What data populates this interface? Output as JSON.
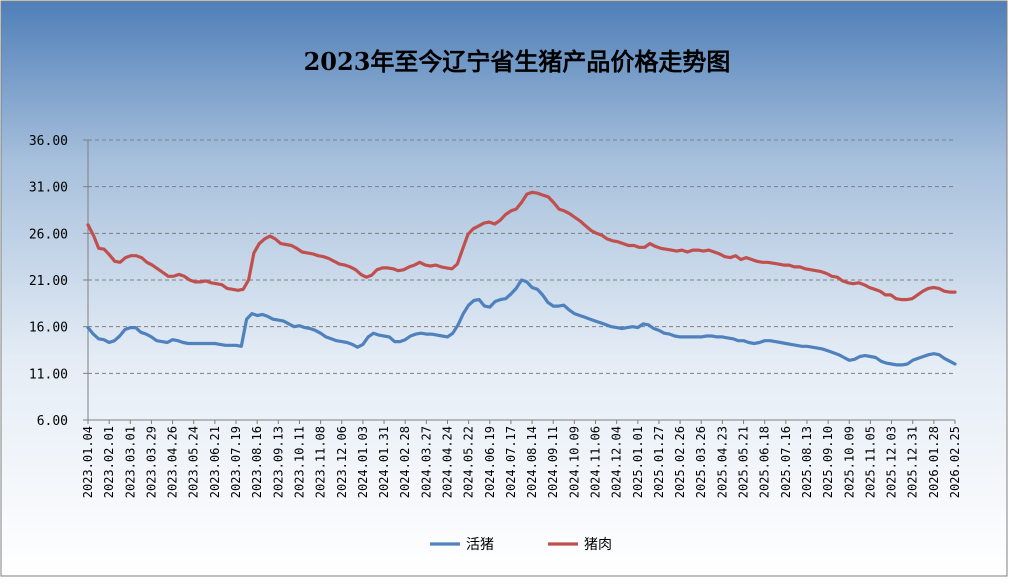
{
  "chart_data": {
    "type": "line",
    "title": "2023年至今辽宁省生猪产品价格走势图",
    "xlabel": "",
    "ylabel": "",
    "ylim": [
      6,
      36
    ],
    "y_ticks": [
      "36.00",
      "31.00",
      "26.00",
      "21.00",
      "16.00",
      "11.00",
      "6.00"
    ],
    "y_tick_values": [
      36,
      31,
      26,
      21,
      16,
      11,
      6
    ],
    "x_tick_labels": [
      "2023.01.04",
      "2023.02.01",
      "2023.03.01",
      "2023.03.29",
      "2023.04.26",
      "2023.05.24",
      "2023.06.21",
      "2023.07.19",
      "2023.08.16",
      "2023.09.13",
      "2023.10.11",
      "2023.11.08",
      "2023.12.06",
      "2024.01.03",
      "2024.01.31",
      "2024.02.28",
      "2024.03.27",
      "2024.04.24",
      "2024.05.22",
      "2024.06.19",
      "2024.07.17",
      "2024.08.14",
      "2024.09.11",
      "2024.10.09",
      "2024.11.06",
      "2024.12.04",
      "2025.01.01",
      "2025.01.27",
      "2025.02.26",
      "2025.03.26",
      "2025.04.23",
      "2025.05.21",
      "2025.06.18",
      "2025.07.16",
      "2025.08.13",
      "2025.09.10",
      "2025.10.09",
      "2025.11.05",
      "2025.12.03",
      "2025.12.31",
      "2026.01.28",
      "2026.02.25"
    ],
    "grid": true,
    "legend_position": "bottom",
    "series": [
      {
        "name": "活猪",
        "color": "#4f81bd",
        "values": [
          15.9,
          15.2,
          14.7,
          14.6,
          14.3,
          14.5,
          15.0,
          15.7,
          15.9,
          15.9,
          15.4,
          15.2,
          14.9,
          14.5,
          14.4,
          14.3,
          14.6,
          14.5,
          14.3,
          14.2,
          14.2,
          14.2,
          14.2,
          14.2,
          14.2,
          14.1,
          14.0,
          14.0,
          14.0,
          13.9,
          16.8,
          17.4,
          17.2,
          17.3,
          17.1,
          16.8,
          16.7,
          16.6,
          16.3,
          16.0,
          16.1,
          15.9,
          15.8,
          15.6,
          15.3,
          14.9,
          14.7,
          14.5,
          14.4,
          14.3,
          14.1,
          13.8,
          14.1,
          14.9,
          15.3,
          15.1,
          15.0,
          14.9,
          14.4,
          14.4,
          14.6,
          15.0,
          15.2,
          15.3,
          15.2,
          15.2,
          15.1,
          15.0,
          14.9,
          15.3,
          16.2,
          17.4,
          18.3,
          18.8,
          18.9,
          18.2,
          18.1,
          18.7,
          18.9,
          19.0,
          19.5,
          20.1,
          21.0,
          20.8,
          20.2,
          20.0,
          19.4,
          18.6,
          18.2,
          18.2,
          18.3,
          17.8,
          17.4,
          17.2,
          17.0,
          16.8,
          16.6,
          16.4,
          16.2,
          16.0,
          15.9,
          15.8,
          15.9,
          16.0,
          15.9,
          16.3,
          16.2,
          15.8,
          15.6,
          15.3,
          15.2,
          15.0,
          14.9,
          14.9,
          14.9,
          14.9,
          14.9,
          15.0,
          15.0,
          14.9,
          14.9,
          14.8,
          14.7,
          14.5,
          14.5,
          14.3,
          14.2,
          14.3,
          14.5,
          14.5,
          14.4,
          14.3,
          14.2,
          14.1,
          14.0,
          13.9,
          13.9,
          13.8,
          13.7,
          13.6,
          13.4,
          13.2,
          13.0,
          12.7,
          12.4,
          12.5,
          12.8,
          12.9,
          12.8,
          12.7,
          12.3,
          12.1,
          12.0,
          11.9,
          11.9,
          12.0,
          12.4,
          12.6,
          12.8,
          13.0,
          13.1,
          13.0,
          12.6,
          12.3,
          12.0
        ]
      },
      {
        "name": "猪肉",
        "color": "#c0504d",
        "values": [
          26.9,
          25.8,
          24.4,
          24.3,
          23.7,
          23.0,
          22.9,
          23.4,
          23.6,
          23.6,
          23.4,
          22.9,
          22.6,
          22.2,
          21.8,
          21.4,
          21.4,
          21.6,
          21.4,
          21.0,
          20.8,
          20.8,
          20.9,
          20.7,
          20.6,
          20.5,
          20.1,
          20.0,
          19.9,
          20.0,
          21.0,
          23.9,
          24.9,
          25.4,
          25.7,
          25.4,
          24.9,
          24.8,
          24.7,
          24.4,
          24.0,
          23.9,
          23.8,
          23.6,
          23.5,
          23.3,
          23.0,
          22.7,
          22.6,
          22.4,
          22.1,
          21.6,
          21.3,
          21.5,
          22.1,
          22.3,
          22.3,
          22.2,
          22.0,
          22.1,
          22.4,
          22.6,
          22.9,
          22.6,
          22.5,
          22.6,
          22.4,
          22.3,
          22.2,
          22.7,
          24.3,
          25.9,
          26.5,
          26.8,
          27.1,
          27.2,
          27.0,
          27.4,
          28.0,
          28.4,
          28.6,
          29.3,
          30.2,
          30.4,
          30.3,
          30.1,
          29.9,
          29.3,
          28.6,
          28.4,
          28.1,
          27.7,
          27.3,
          26.8,
          26.3,
          26.0,
          25.8,
          25.4,
          25.2,
          25.1,
          24.9,
          24.7,
          24.7,
          24.5,
          24.5,
          24.9,
          24.6,
          24.4,
          24.3,
          24.2,
          24.1,
          24.2,
          24.0,
          24.2,
          24.2,
          24.1,
          24.2,
          24.0,
          23.8,
          23.5,
          23.4,
          23.6,
          23.2,
          23.4,
          23.2,
          23.0,
          22.9,
          22.9,
          22.8,
          22.7,
          22.6,
          22.6,
          22.4,
          22.4,
          22.2,
          22.1,
          22.0,
          21.9,
          21.7,
          21.4,
          21.3,
          20.9,
          20.7,
          20.6,
          20.7,
          20.5,
          20.2,
          20.0,
          19.8,
          19.4,
          19.4,
          19.0,
          18.9,
          18.9,
          19.0,
          19.4,
          19.8,
          20.1,
          20.2,
          20.1,
          19.8,
          19.7,
          19.7
        ]
      }
    ]
  }
}
